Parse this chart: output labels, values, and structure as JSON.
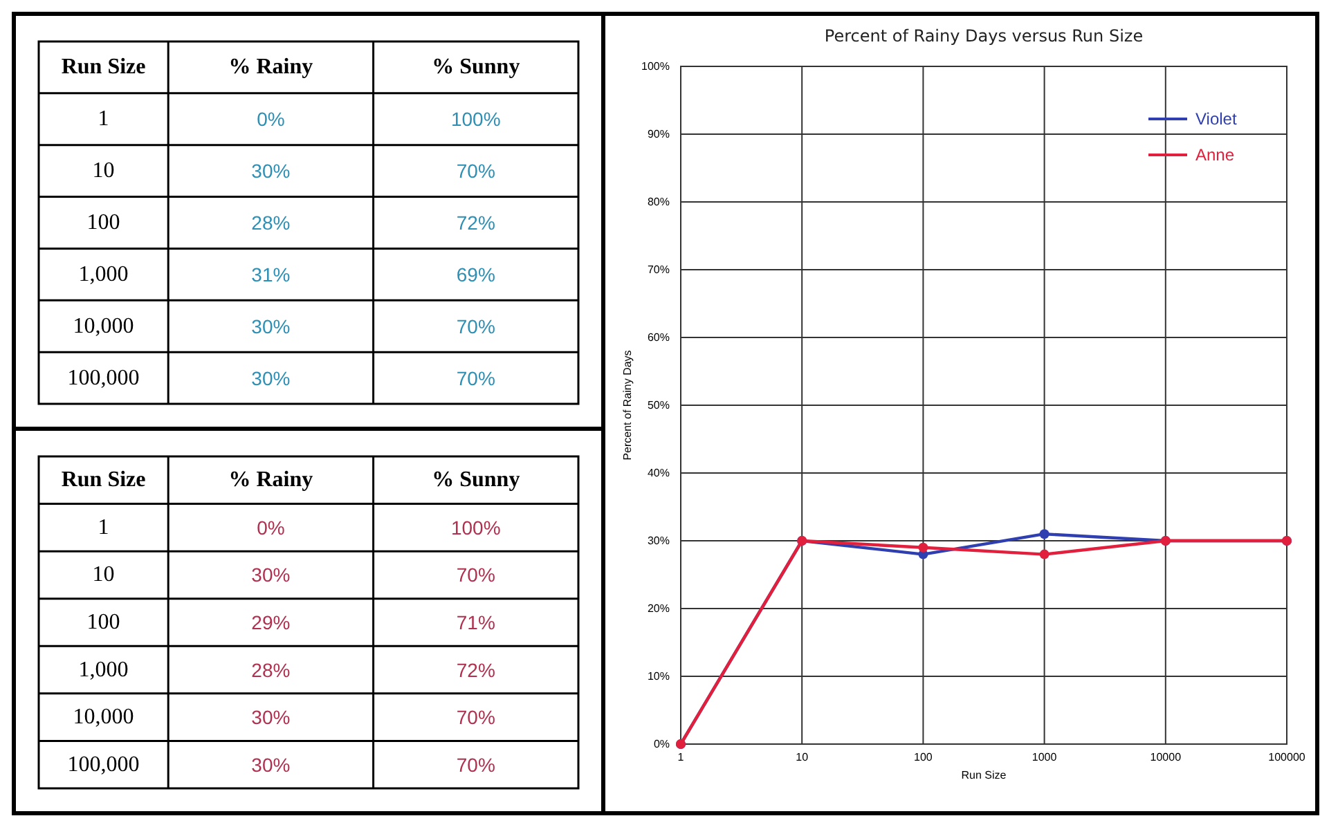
{
  "chart_data": [
    {
      "type": "other",
      "categories": [
        "Run Size",
        "% Rainy",
        "% Sunny"
      ],
      "color": "#2e8fb5",
      "cell_labels": [
        [
          "1",
          "0%",
          "100%"
        ],
        [
          "10",
          "30%",
          "70%"
        ],
        [
          "100",
          "28%",
          "72%"
        ],
        [
          "1,000",
          "31%",
          "69%"
        ],
        [
          "10,000",
          "30%",
          "70%"
        ],
        [
          "100,000",
          "30%",
          "70%"
        ]
      ]
    },
    {
      "type": "other",
      "categories": [
        "Run Size",
        "% Rainy",
        "% Sunny"
      ],
      "color": "#b0304f",
      "cell_labels": [
        [
          "1",
          "0%",
          "100%"
        ],
        [
          "10",
          "30%",
          "70%"
        ],
        [
          "100",
          "29%",
          "71%"
        ],
        [
          "1,000",
          "28%",
          "72%"
        ],
        [
          "10,000",
          "30%",
          "70%"
        ],
        [
          "100,000",
          "30%",
          "70%"
        ]
      ]
    },
    {
      "type": "line",
      "title": "Percent of Rainy Days versus Run Size",
      "xlabel": "Run Size",
      "ylabel": "Percent of Rainy Days",
      "log": "x",
      "x": [
        1,
        10,
        100,
        1000,
        10000,
        100000
      ],
      "series": [
        {
          "name": "Violet",
          "color": "#2f3fb0",
          "values": [
            0,
            30,
            28,
            31,
            30,
            30
          ]
        },
        {
          "name": "Anne",
          "color": "#e0203c",
          "values": [
            0,
            30,
            29,
            28,
            30,
            30
          ]
        }
      ],
      "xlim": [
        1,
        100000
      ],
      "xticks": [
        1,
        10,
        100,
        1000,
        10000,
        100000
      ],
      "ylim": [
        0,
        100
      ],
      "yticks": [
        {
          "value": 0,
          "label": "0%"
        },
        {
          "value": 10,
          "label": "10%"
        },
        {
          "value": 20,
          "label": "20%"
        },
        {
          "value": 30,
          "label": "30%"
        },
        {
          "value": 40,
          "label": "40%"
        },
        {
          "value": 50,
          "label": "50%"
        },
        {
          "value": 60,
          "label": "60%"
        },
        {
          "value": 70,
          "label": "70%"
        },
        {
          "value": 80,
          "label": "80%"
        },
        {
          "value": 90,
          "label": "90%"
        },
        {
          "value": 100,
          "label": "100%"
        }
      ],
      "grid": true,
      "legend": "top right",
      "marker": "circle",
      "line_style": "solid"
    }
  ]
}
